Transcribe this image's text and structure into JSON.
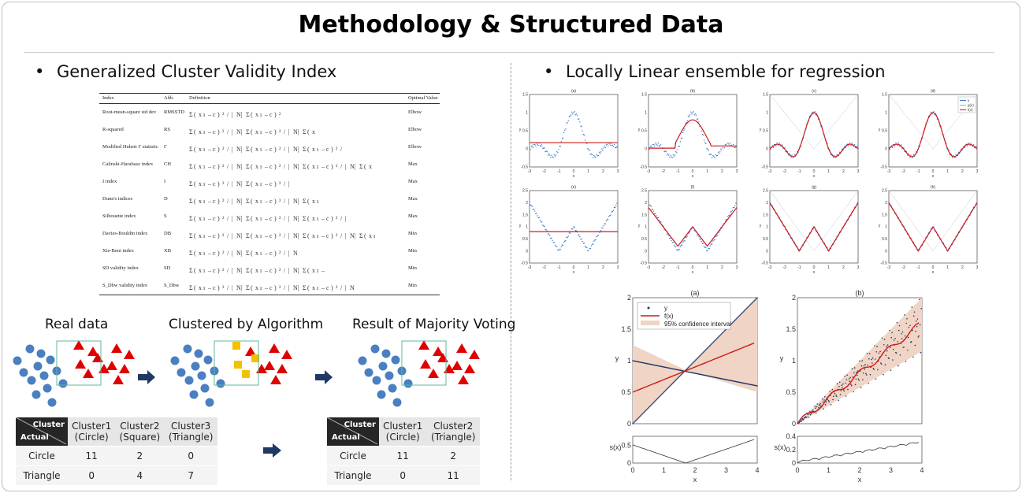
{
  "slide": {
    "title": "Methodology & Structured Data",
    "left_heading": "Generalized Cluster Validity Index",
    "right_heading": "Locally Linear ensemble for regression",
    "bullet": "•"
  },
  "index_table": {
    "headers": [
      "Index",
      "Abb.",
      "Definition",
      "Optimal Value"
    ],
    "rows": [
      {
        "index": "Root-mean-square std dev",
        "abb": "RMSSTD",
        "opt": "Elbow"
      },
      {
        "index": "R-squared",
        "abb": "RS",
        "opt": "Elbow"
      },
      {
        "index": "Modified Hubert Γ statistic",
        "abb": "Γ",
        "opt": "Elbow"
      },
      {
        "index": "Calinski-Harabasz index",
        "abb": "CH",
        "opt": "Max"
      },
      {
        "index": "I index",
        "abb": "I",
        "opt": "Max"
      },
      {
        "index": "Dunn's indices",
        "abb": "D",
        "opt": "Max"
      },
      {
        "index": "Silhouette index",
        "abb": "S",
        "opt": "Max"
      },
      {
        "index": "Davies-Bouldin index",
        "abb": "DB",
        "opt": "Min"
      },
      {
        "index": "Xie-Beni index",
        "abb": "XB",
        "opt": "Min"
      },
      {
        "index": "SD validity index",
        "abb": "SD",
        "opt": "Min"
      },
      {
        "index": "S_Dbw validity index",
        "abb": "S_Dbw",
        "opt": "Min"
      }
    ]
  },
  "cluster_diagram": {
    "label_real": "Real data",
    "label_clustered": "Clustered by Algorithm",
    "label_result": "Result of Majority Voting",
    "colors": {
      "circle": "#4a7fc1",
      "triangle": "#e00000",
      "square": "#f2c100",
      "arrow": "#1f3864",
      "box": "#5fb89a"
    }
  },
  "table_left": {
    "corner_top": "Cluster",
    "corner_bottom": "Actual",
    "columns": [
      [
        "Cluster1",
        "(Circle)"
      ],
      [
        "Cluster2",
        "(Square)"
      ],
      [
        "Cluster3",
        "(Triangle)"
      ]
    ],
    "rows": [
      {
        "label": "Circle",
        "values": [
          "11",
          "2",
          "0"
        ]
      },
      {
        "label": "Triangle",
        "values": [
          "0",
          "4",
          "7"
        ]
      }
    ]
  },
  "table_right": {
    "corner_top": "Cluster",
    "corner_bottom": "Actual",
    "columns": [
      [
        "Cluster1",
        "(Circle)"
      ],
      [
        "Cluster2",
        "(Triangle)"
      ]
    ],
    "rows": [
      {
        "label": "Circle",
        "values": [
          "11",
          "2"
        ]
      },
      {
        "label": "Triangle",
        "values": [
          "0",
          "11"
        ]
      }
    ]
  },
  "chart_data": [
    {
      "type": "line",
      "panel": "(a)",
      "xlim": [
        -3,
        3
      ],
      "ylim": [
        -0.5,
        1.5
      ],
      "xlabel": "x",
      "ylabel": "y",
      "xticks": [
        -3,
        -2,
        -1,
        0,
        1,
        2,
        3
      ],
      "yticks": [
        -0.5,
        0,
        0.5,
        1,
        1.5
      ]
    },
    {
      "type": "line",
      "panel": "(b)",
      "xlim": [
        -3,
        3
      ],
      "ylim": [
        -0.5,
        1.5
      ],
      "xlabel": "x",
      "ylabel": "y",
      "xticks": [
        -3,
        -2,
        -1,
        0,
        1,
        2,
        3
      ],
      "yticks": [
        -0.5,
        0,
        0.5,
        1,
        1.5
      ]
    },
    {
      "type": "line",
      "panel": "(c)",
      "xlim": [
        -3,
        3
      ],
      "ylim": [
        -0.5,
        1.5
      ],
      "xlabel": "x",
      "ylabel": "y",
      "xticks": [
        -3,
        -2,
        -1,
        0,
        1,
        2,
        3
      ],
      "yticks": [
        -0.5,
        0,
        0.5,
        1,
        1.5
      ]
    },
    {
      "type": "line",
      "panel": "(d)",
      "xlim": [
        -3,
        3
      ],
      "ylim": [
        -0.5,
        1.5
      ],
      "xlabel": "x",
      "ylabel": "y",
      "xticks": [
        -3,
        -2,
        -1,
        0,
        1,
        2,
        3
      ],
      "yticks": [
        -0.5,
        0,
        0.5,
        1,
        1.5
      ],
      "legend": [
        "y",
        "g(x)",
        "f(x)"
      ]
    },
    {
      "type": "line",
      "panel": "(e)",
      "xlim": [
        -3,
        3
      ],
      "ylim": [
        -0.5,
        2.5
      ],
      "xlabel": "x",
      "ylabel": "y",
      "xticks": [
        -3,
        -2,
        -1,
        0,
        1,
        2,
        3
      ],
      "yticks": [
        -0.5,
        0,
        0.5,
        1,
        1.5,
        2,
        2.5
      ]
    },
    {
      "type": "line",
      "panel": "(f)",
      "xlim": [
        -3,
        3
      ],
      "ylim": [
        -0.5,
        2.5
      ],
      "xlabel": "x",
      "ylabel": "y",
      "xticks": [
        -3,
        -2,
        -1,
        0,
        1,
        2,
        3
      ],
      "yticks": [
        -0.5,
        0,
        0.5,
        1,
        1.5,
        2,
        2.5
      ]
    },
    {
      "type": "line",
      "panel": "(g)",
      "xlim": [
        -3,
        3
      ],
      "ylim": [
        -0.5,
        2.5
      ],
      "xlabel": "x",
      "ylabel": "y",
      "xticks": [
        -3,
        -2,
        -1,
        0,
        1,
        2,
        3
      ],
      "yticks": [
        -0.5,
        0,
        0.5,
        1,
        1.5,
        2,
        2.5
      ]
    },
    {
      "type": "line",
      "panel": "(h)",
      "xlim": [
        -3,
        3
      ],
      "ylim": [
        -0.5,
        2.5
      ],
      "xlabel": "x",
      "ylabel": "y",
      "xticks": [
        -3,
        -2,
        -1,
        0,
        1,
        2,
        3
      ],
      "yticks": [
        -0.5,
        0,
        0.5,
        1,
        1.5,
        2,
        2.5
      ]
    },
    {
      "type": "line",
      "panel": "(a)",
      "xlim": [
        0,
        4
      ],
      "ylim": [
        0,
        2
      ],
      "xlabel": "x",
      "ylabel": "y",
      "xticks": [
        0,
        1,
        2,
        3,
        4
      ],
      "yticks": [
        0,
        0.5,
        1,
        1.5,
        2
      ],
      "legend": [
        "y",
        "f(x)",
        "95% confidence interval"
      ],
      "sub": {
        "ylabel": "s(x)",
        "ylim": [
          0,
          0.75
        ],
        "yticks": [
          0,
          0.5
        ]
      }
    },
    {
      "type": "line",
      "panel": "(b)",
      "xlim": [
        0,
        4
      ],
      "ylim": [
        0,
        2
      ],
      "xlabel": "x",
      "ylabel": "y",
      "xticks": [
        0,
        1,
        2,
        3,
        4
      ],
      "yticks": [
        0,
        0.5,
        1,
        1.5,
        2
      ],
      "sub": {
        "ylabel": "s(x)",
        "ylim": [
          0,
          0.4
        ],
        "yticks": [
          0,
          0.2,
          0.4
        ]
      }
    }
  ]
}
